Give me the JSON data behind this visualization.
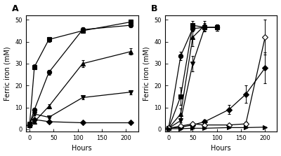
{
  "panel_A": {
    "series": [
      {
        "marker": "s",
        "x": [
          0,
          10,
          40,
          110,
          210
        ],
        "y": [
          2.0,
          28.5,
          41.0,
          45.0,
          49.0
        ],
        "yerr": [
          0.3,
          1.0,
          1.0,
          1.0,
          1.0
        ]
      },
      {
        "marker": "o",
        "x": [
          0,
          10,
          40,
          110,
          210
        ],
        "y": [
          2.5,
          9.0,
          26.0,
          45.5,
          47.5
        ],
        "yerr": [
          0.3,
          0.5,
          1.0,
          1.0,
          1.0
        ]
      },
      {
        "marker": "^",
        "x": [
          0,
          10,
          40,
          110,
          210
        ],
        "y": [
          2.0,
          3.5,
          10.5,
          30.0,
          35.5
        ],
        "yerr": [
          0.3,
          0.5,
          0.8,
          1.5,
          1.5
        ]
      },
      {
        "marker": "v",
        "x": [
          0,
          10,
          40,
          110,
          210
        ],
        "y": [
          2.5,
          7.0,
          5.5,
          14.5,
          17.0
        ],
        "yerr": [
          0.3,
          0.5,
          0.5,
          0.8,
          1.0
        ]
      },
      {
        "marker": "D",
        "x": [
          0,
          10,
          40,
          110,
          210
        ],
        "y": [
          2.0,
          4.5,
          3.5,
          3.0,
          3.0
        ],
        "yerr": [
          0.2,
          0.3,
          0.3,
          0.3,
          0.3
        ]
      }
    ],
    "xlabel": "Hours",
    "ylabel": "Ferric iron (mM)",
    "xlim": [
      -8,
      225
    ],
    "ylim": [
      -1,
      52
    ],
    "xticks": [
      0,
      50,
      100,
      150,
      200
    ],
    "yticks": [
      0,
      10,
      20,
      30,
      40,
      50
    ],
    "label": "A"
  },
  "panel_B": {
    "series": [
      {
        "marker": "s",
        "x": [
          0,
          25,
          50,
          75,
          100
        ],
        "y": [
          0.5,
          15.0,
          47.5,
          46.5,
          46.5
        ],
        "yerr": [
          0.2,
          4.0,
          2.0,
          1.5,
          1.5
        ]
      },
      {
        "marker": "o",
        "x": [
          0,
          25,
          50,
          75,
          100
        ],
        "y": [
          0.5,
          33.5,
          46.0,
          46.5,
          46.5
        ],
        "yerr": [
          0.2,
          2.0,
          1.5,
          1.5,
          1.5
        ]
      },
      {
        "marker": "^",
        "x": [
          0,
          25,
          50,
          75
        ],
        "y": [
          0.5,
          7.0,
          42.0,
          47.5
        ],
        "yerr": [
          0.2,
          2.5,
          4.0,
          2.0
        ]
      },
      {
        "marker": "v",
        "x": [
          0,
          25,
          50,
          75,
          100
        ],
        "y": [
          0.5,
          4.0,
          30.0,
          46.5,
          46.5
        ],
        "yerr": [
          0.2,
          1.0,
          3.5,
          2.0,
          1.5
        ]
      },
      {
        "marker": "D",
        "x": [
          0,
          25,
          50,
          75,
          125,
          160,
          200
        ],
        "y": [
          0.5,
          1.0,
          2.0,
          3.5,
          9.0,
          16.0,
          28.0
        ],
        "yerr": [
          0.2,
          0.3,
          0.5,
          0.8,
          2.0,
          4.0,
          7.0
        ]
      },
      {
        "marker": "D",
        "x": [
          0,
          25,
          50,
          75,
          125,
          160,
          200
        ],
        "y": [
          0.5,
          1.5,
          2.5,
          2.0,
          2.0,
          2.5,
          42.0
        ],
        "yerr": [
          0.2,
          0.3,
          0.3,
          0.3,
          0.5,
          1.0,
          8.0
        ],
        "hollow": true
      },
      {
        "marker": ">",
        "x": [
          0,
          25,
          50,
          75,
          125,
          160,
          200
        ],
        "y": [
          0.3,
          0.3,
          0.5,
          0.5,
          0.8,
          0.8,
          1.0
        ],
        "yerr": [
          0.1,
          0.1,
          0.1,
          0.1,
          0.1,
          0.1,
          0.1
        ]
      }
    ],
    "xlabel": "Hours",
    "ylabel": "Ferric iron (mM)",
    "xlim": [
      -8,
      225
    ],
    "ylim": [
      -1,
      52
    ],
    "xticks": [
      0,
      50,
      100,
      150,
      200
    ],
    "yticks": [
      0,
      10,
      20,
      30,
      40,
      50
    ],
    "label": "B"
  },
  "color": "black",
  "markersize": 4.5,
  "linewidth": 0.9,
  "capsize": 1.5,
  "elinewidth": 0.7
}
